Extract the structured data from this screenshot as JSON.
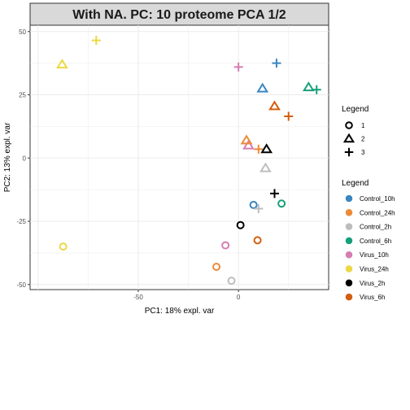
{
  "chart_data": {
    "type": "scatter",
    "title": "With NA. PC: 10 proteome PCA 1/2",
    "xlabel": "PC1: 18% expl. var",
    "ylabel": "PC2: 13% expl. var",
    "xlim": [
      -104,
      45
    ],
    "ylim": [
      -52,
      52.5
    ],
    "xticks": [
      -50,
      0
    ],
    "yticks": [
      50,
      25,
      0,
      -25,
      -50
    ],
    "grid": true,
    "legend_position": "right",
    "shape_legend": {
      "title": "Legend",
      "items": [
        {
          "label": "1",
          "shape": "circle"
        },
        {
          "label": "2",
          "shape": "triangle"
        },
        {
          "label": "3",
          "shape": "plus"
        }
      ]
    },
    "color_legend": {
      "title": "Legend",
      "items": [
        {
          "label": "Control_10h",
          "color": "#3a87c1"
        },
        {
          "label": "Control_24h",
          "color": "#ee8a38"
        },
        {
          "label": "Control_2h",
          "color": "#bdbdbd"
        },
        {
          "label": "Control_6h",
          "color": "#15a07a"
        },
        {
          "label": "Virus_10h",
          "color": "#d67db3"
        },
        {
          "label": "Virus_24h",
          "color": "#ecd842"
        },
        {
          "label": "Virus_2h",
          "color": "#000000"
        },
        {
          "label": "Virus_6h",
          "color": "#d25e0e"
        }
      ]
    },
    "points": [
      {
        "group": "Virus_24h",
        "shape": "plus",
        "x": -71,
        "y": 46.5
      },
      {
        "group": "Virus_24h",
        "shape": "triangle",
        "x": -88,
        "y": 37
      },
      {
        "group": "Virus_24h",
        "shape": "circle",
        "x": -87.5,
        "y": -35
      },
      {
        "group": "Virus_10h",
        "shape": "plus",
        "x": 0,
        "y": 36
      },
      {
        "group": "Virus_10h",
        "shape": "triangle",
        "x": 5,
        "y": 5
      },
      {
        "group": "Virus_10h",
        "shape": "circle",
        "x": -6.5,
        "y": -34.5
      },
      {
        "group": "Control_10h",
        "shape": "plus",
        "x": 19,
        "y": 37.5
      },
      {
        "group": "Control_10h",
        "shape": "triangle",
        "x": 12,
        "y": 27.5
      },
      {
        "group": "Control_10h",
        "shape": "circle",
        "x": 7.5,
        "y": -18.5
      },
      {
        "group": "Control_6h",
        "shape": "triangle",
        "x": 35,
        "y": 28
      },
      {
        "group": "Control_6h",
        "shape": "plus",
        "x": 39,
        "y": 27
      },
      {
        "group": "Control_6h",
        "shape": "circle",
        "x": 21.5,
        "y": -18
      },
      {
        "group": "Virus_6h",
        "shape": "triangle",
        "x": 18,
        "y": 20.5
      },
      {
        "group": "Virus_6h",
        "shape": "plus",
        "x": 25,
        "y": 16.5
      },
      {
        "group": "Virus_6h",
        "shape": "circle",
        "x": 9.5,
        "y": -32.5
      },
      {
        "group": "Control_24h",
        "shape": "triangle",
        "x": 4,
        "y": 7
      },
      {
        "group": "Control_24h",
        "shape": "plus",
        "x": 10,
        "y": 3.5
      },
      {
        "group": "Control_24h",
        "shape": "circle",
        "x": -11,
        "y": -43
      },
      {
        "group": "Virus_2h",
        "shape": "triangle",
        "x": 14,
        "y": 3.5
      },
      {
        "group": "Virus_2h",
        "shape": "plus",
        "x": 18,
        "y": -14
      },
      {
        "group": "Virus_2h",
        "shape": "circle",
        "x": 1,
        "y": -26.5
      },
      {
        "group": "Control_2h",
        "shape": "triangle",
        "x": 13.5,
        "y": -4
      },
      {
        "group": "Control_2h",
        "shape": "plus",
        "x": 10,
        "y": -20
      },
      {
        "group": "Control_2h",
        "shape": "circle",
        "x": -3.5,
        "y": -48.5
      }
    ]
  }
}
